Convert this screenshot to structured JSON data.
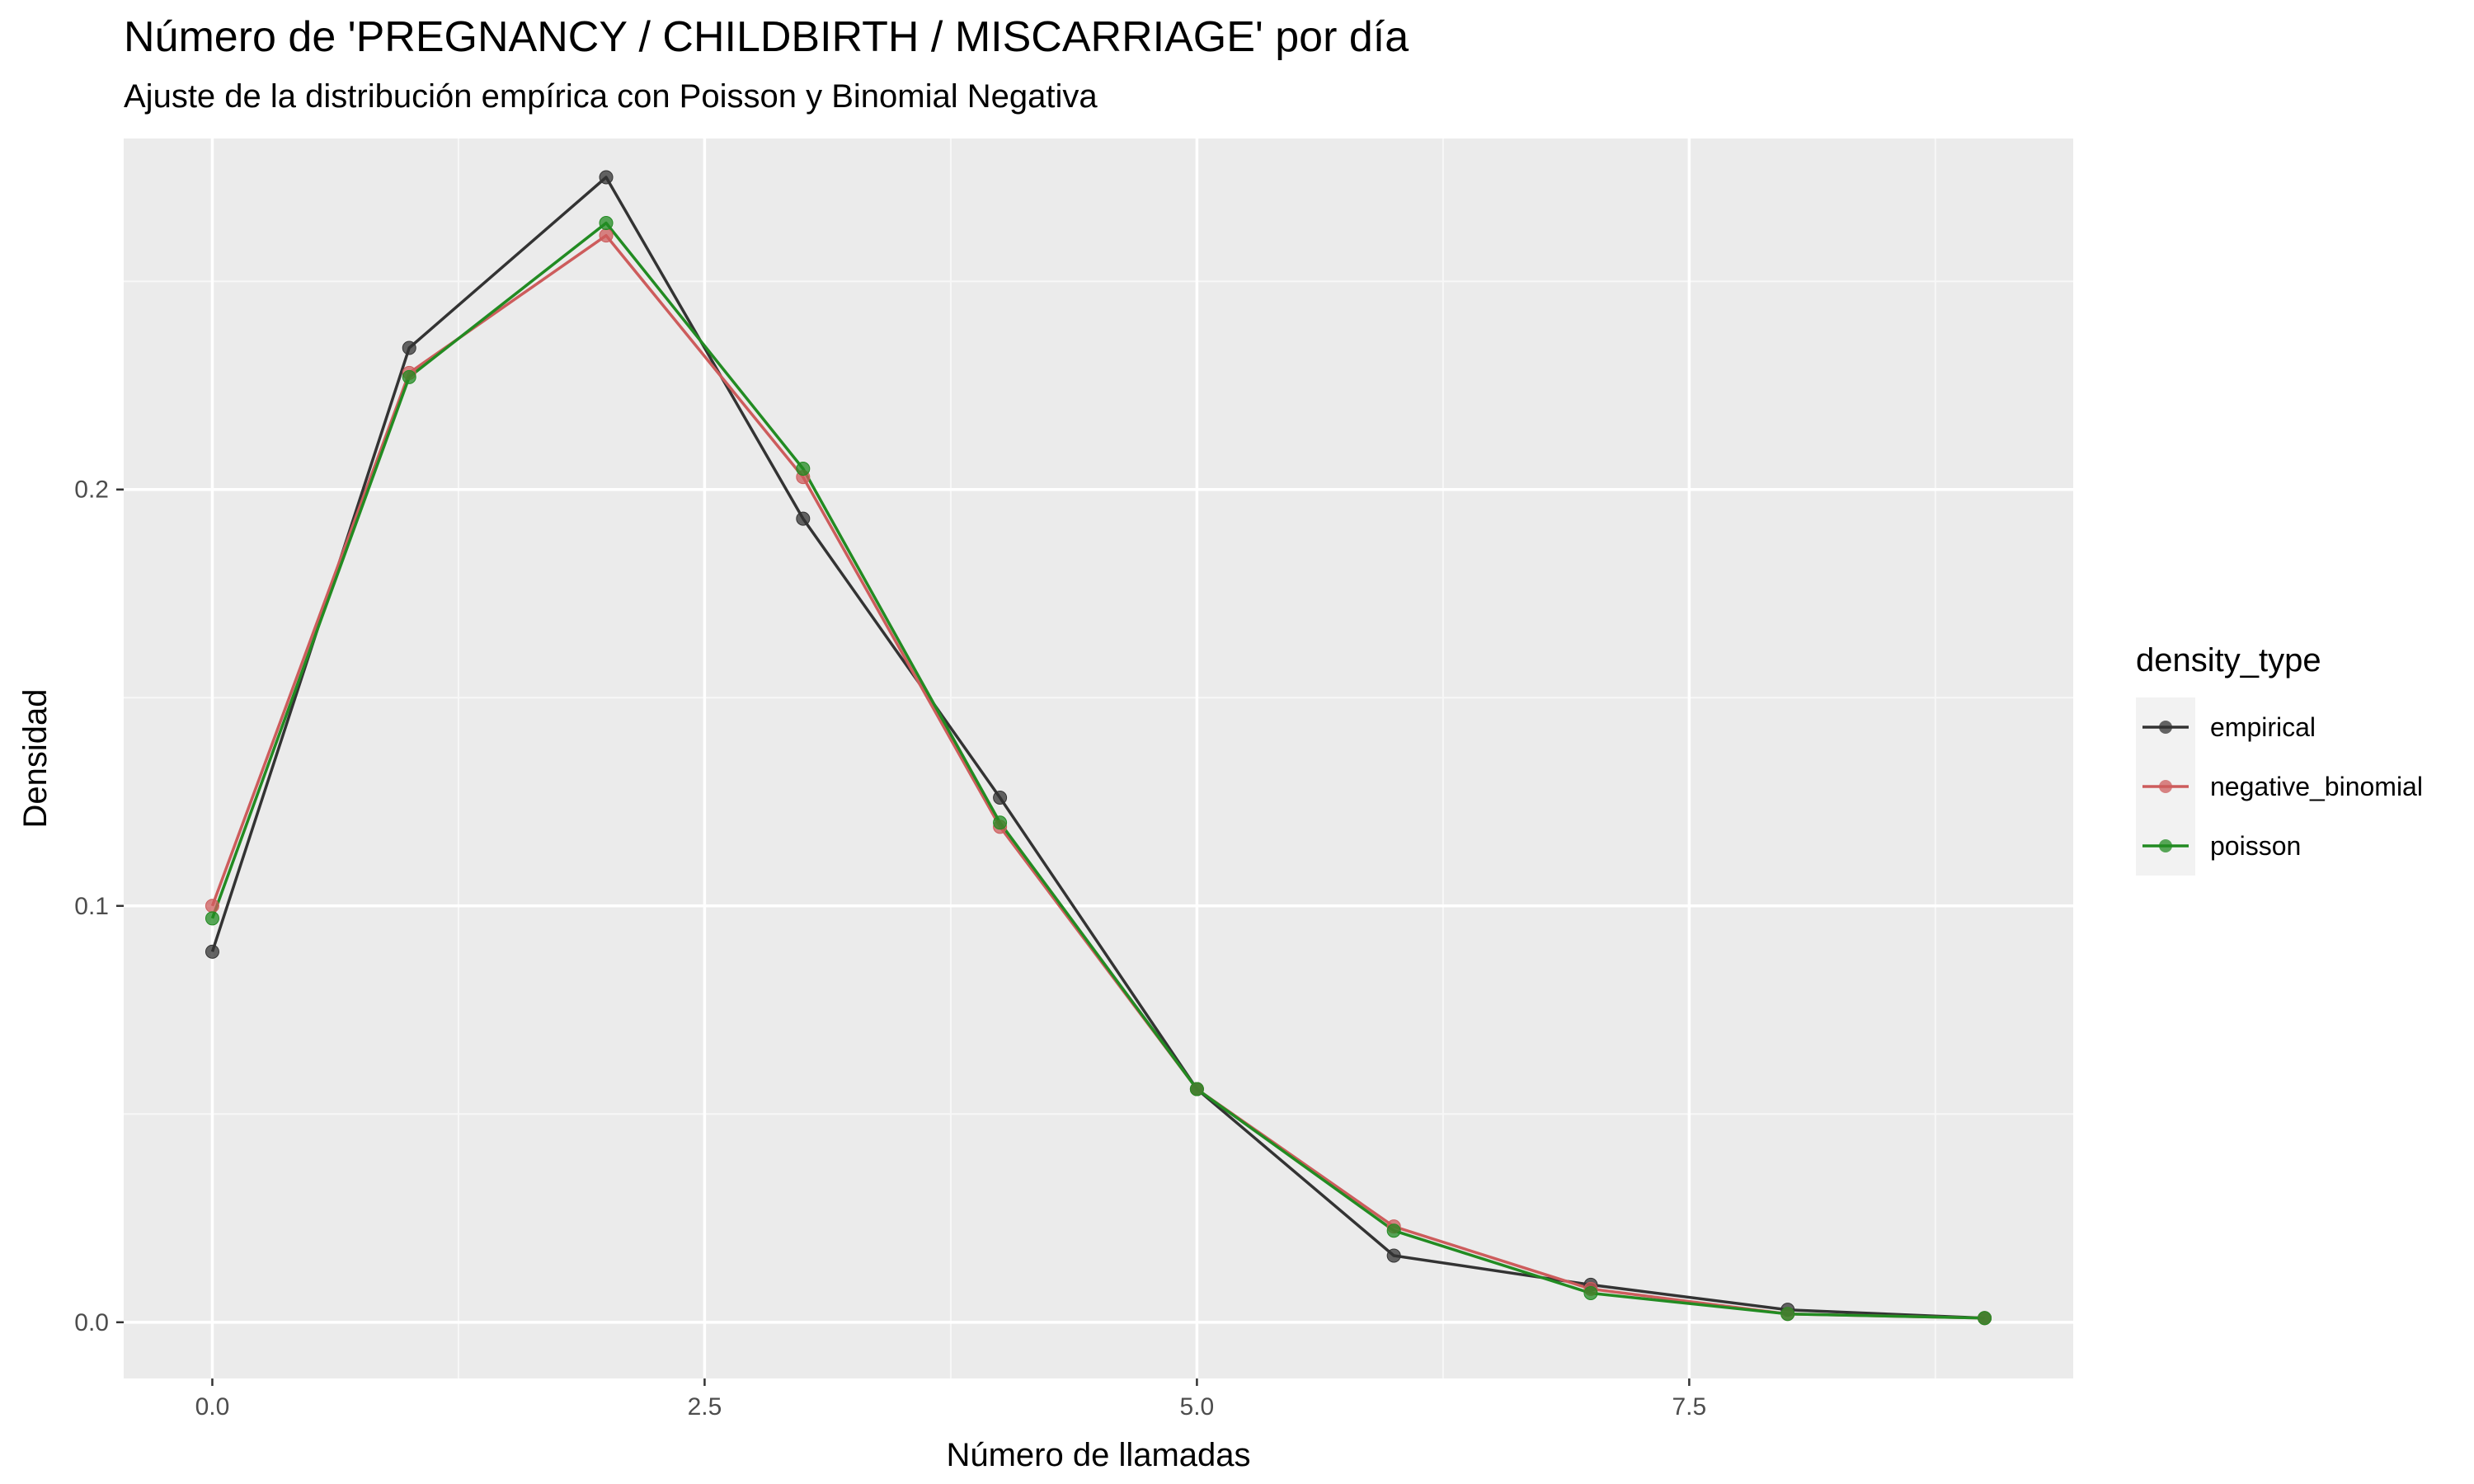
{
  "chart_data": {
    "type": "line",
    "title": "Número de 'PREGNANCY / CHILDBIRTH / MISCARRIAGE' por día",
    "subtitle": "Ajuste de la distribución empírica con Poisson y Binomial Negativa",
    "xlabel": "Número de llamadas",
    "ylabel": "Densidad",
    "xlim": [
      -0.45,
      9.45
    ],
    "ylim": [
      -0.0135,
      0.2843
    ],
    "x_ticks": [
      0,
      2.5,
      5,
      7.5
    ],
    "x_tick_labels": [
      "0.0",
      "2.5",
      "5.0",
      "7.5"
    ],
    "y_ticks": [
      0,
      0.1,
      0.2
    ],
    "y_tick_labels": [
      "0.0",
      "0.1",
      "0.2"
    ],
    "grid": true,
    "legend": {
      "title": "density_type",
      "position": "right"
    },
    "x": [
      0,
      1,
      2,
      3,
      4,
      5,
      6,
      7,
      8,
      9
    ],
    "series": [
      {
        "name": "empirical",
        "color": "#333333",
        "values": [
          0.089,
          0.234,
          0.275,
          0.193,
          0.126,
          0.056,
          0.016,
          0.009,
          0.003,
          0.001
        ]
      },
      {
        "name": "negative_binomial",
        "color": "#cd5c5c",
        "values": [
          0.1,
          0.228,
          0.261,
          0.203,
          0.119,
          0.056,
          0.023,
          0.008,
          0.002,
          0.001
        ]
      },
      {
        "name": "poisson",
        "color": "#228b22",
        "values": [
          0.097,
          0.227,
          0.264,
          0.205,
          0.12,
          0.056,
          0.022,
          0.007,
          0.002,
          0.001
        ]
      }
    ]
  }
}
